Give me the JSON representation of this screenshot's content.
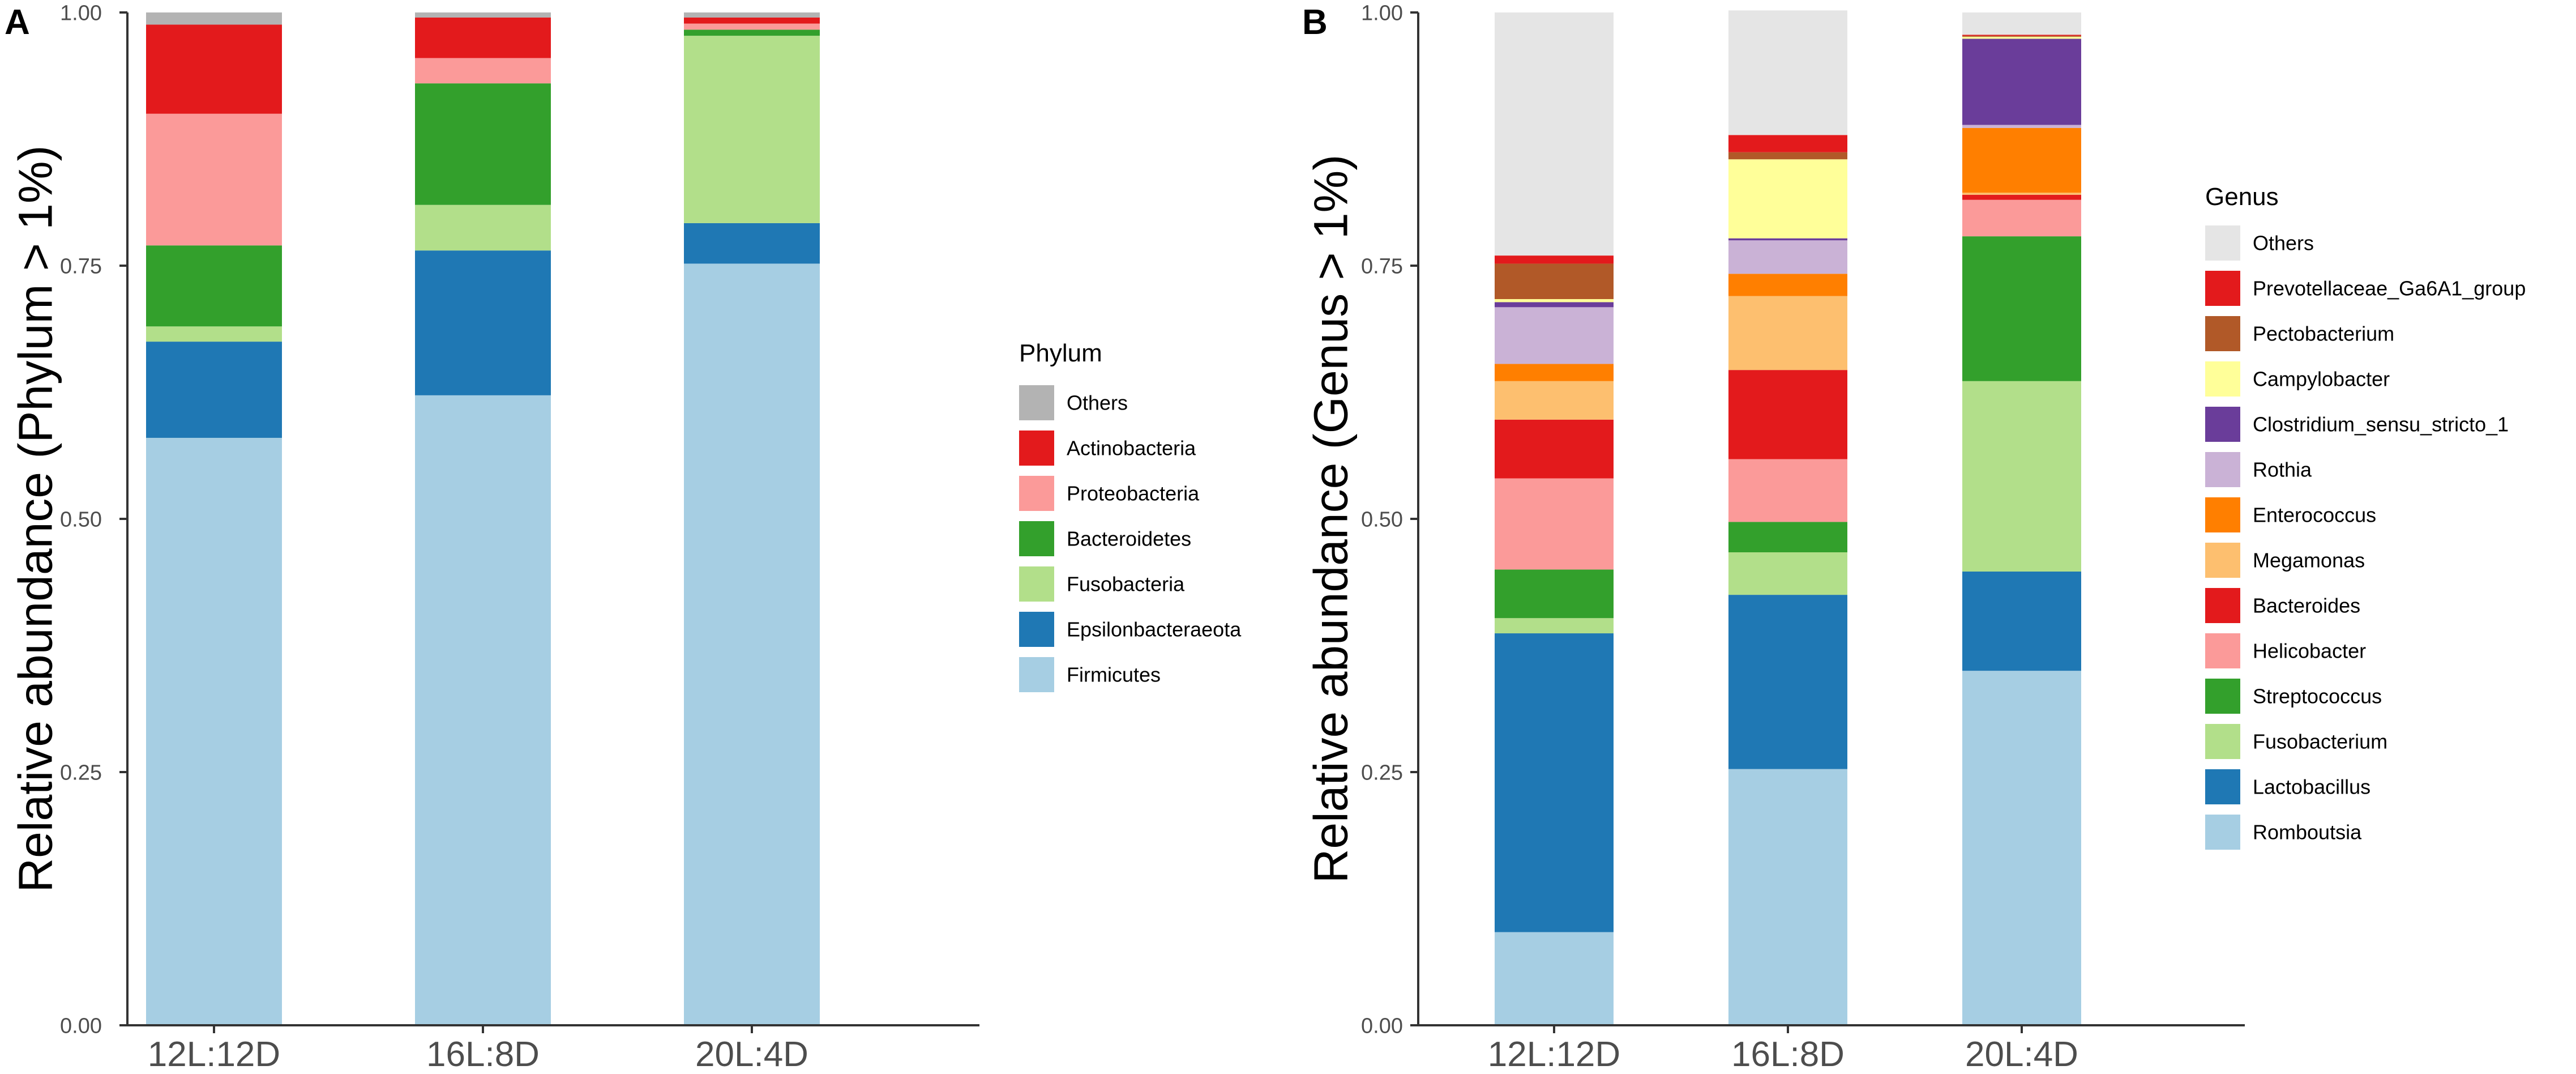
{
  "chart_data": [
    {
      "panel_label": "A",
      "type": "bar",
      "stacked": true,
      "categories": [
        "12L:12D",
        "16L:8D",
        "20L:4D"
      ],
      "xlabel": "",
      "ylabel": "Relative abundance (Phylum > 1%)",
      "ylim": [
        0,
        1
      ],
      "yticks": [
        "0.00",
        "0.25",
        "0.50",
        "0.75",
        "1.00"
      ],
      "legend_title": "Phylum",
      "legend_position": "right",
      "series": [
        {
          "name": "Firmicutes",
          "color": "#A6CEE3",
          "values": [
            0.58,
            0.622,
            0.752
          ]
        },
        {
          "name": "Epsilonbacteraeota",
          "color": "#1F78B4",
          "values": [
            0.095,
            0.143,
            0.04
          ]
        },
        {
          "name": "Fusobacteria",
          "color": "#B2DF8A",
          "values": [
            0.015,
            0.045,
            0.185
          ]
        },
        {
          "name": "Bacteroidetes",
          "color": "#33A02C",
          "values": [
            0.08,
            0.12,
            0.006
          ]
        },
        {
          "name": "Proteobacteria",
          "color": "#FB9A99",
          "values": [
            0.13,
            0.025,
            0.006
          ]
        },
        {
          "name": "Actinobacteria",
          "color": "#E31A1C",
          "values": [
            0.088,
            0.04,
            0.006
          ]
        },
        {
          "name": "Others",
          "color": "#B3B3B3",
          "values": [
            0.012,
            0.005,
            0.005
          ]
        }
      ],
      "legend_order": [
        "Others",
        "Actinobacteria",
        "Proteobacteria",
        "Bacteroidetes",
        "Fusobacteria",
        "Epsilonbacteraeota",
        "Firmicutes"
      ]
    },
    {
      "panel_label": "B",
      "type": "bar",
      "stacked": true,
      "categories": [
        "12L:12D",
        "16L:8D",
        "20L:4D"
      ],
      "xlabel": "",
      "ylabel": "Relative abundance (Genus > 1%)",
      "ylim": [
        0,
        1
      ],
      "yticks": [
        "0.00",
        "0.25",
        "0.50",
        "0.75",
        "1.00"
      ],
      "legend_title": "Genus",
      "legend_position": "right",
      "series": [
        {
          "name": "Romboutsia",
          "color": "#A6CEE3",
          "values": [
            0.092,
            0.253,
            0.35
          ]
        },
        {
          "name": "Lactobacillus",
          "color": "#1F78B4",
          "values": [
            0.295,
            0.172,
            0.098
          ]
        },
        {
          "name": "Fusobacterium",
          "color": "#B2DF8A",
          "values": [
            0.015,
            0.042,
            0.188
          ]
        },
        {
          "name": "Streptococcus",
          "color": "#33A02C",
          "values": [
            0.048,
            0.03,
            0.143
          ]
        },
        {
          "name": "Helicobacter",
          "color": "#FB9A99",
          "values": [
            0.09,
            0.062,
            0.036
          ]
        },
        {
          "name": "Bacteroides",
          "color": "#E31A1C",
          "values": [
            0.058,
            0.088,
            0.005
          ]
        },
        {
          "name": "Megamonas",
          "color": "#FDBF6F",
          "values": [
            0.038,
            0.073,
            0.002
          ]
        },
        {
          "name": "Enterococcus",
          "color": "#FF7F00",
          "values": [
            0.017,
            0.022,
            0.064
          ]
        },
        {
          "name": "Rothia",
          "color": "#CAB2D6",
          "values": [
            0.056,
            0.033,
            0.003
          ]
        },
        {
          "name": "Clostridium_sensu_stricto_1",
          "color": "#6A3D9A",
          "values": [
            0.005,
            0.002,
            0.085
          ]
        },
        {
          "name": "Campylobacter",
          "color": "#FFFF99",
          "values": [
            0.003,
            0.078,
            0.002
          ]
        },
        {
          "name": "Pectobacterium",
          "color": "#B15928",
          "values": [
            0.035,
            0.007,
            0.001
          ]
        },
        {
          "name": "Prevotellaceae_Ga6A1_group",
          "color": "#E31A1C",
          "values": [
            0.008,
            0.017,
            0.001
          ]
        },
        {
          "name": "Others",
          "color": "#E5E5E5",
          "values": [
            0.24,
            0.123,
            0.022
          ]
        }
      ],
      "legend_order": [
        "Others",
        "Prevotellaceae_Ga6A1_group",
        "Pectobacterium",
        "Campylobacter",
        "Clostridium_sensu_stricto_1",
        "Rothia",
        "Enterococcus",
        "Megamonas",
        "Bacteroides",
        "Helicobacter",
        "Streptococcus",
        "Fusobacterium",
        "Lactobacillus",
        "Romboutsia"
      ]
    }
  ]
}
